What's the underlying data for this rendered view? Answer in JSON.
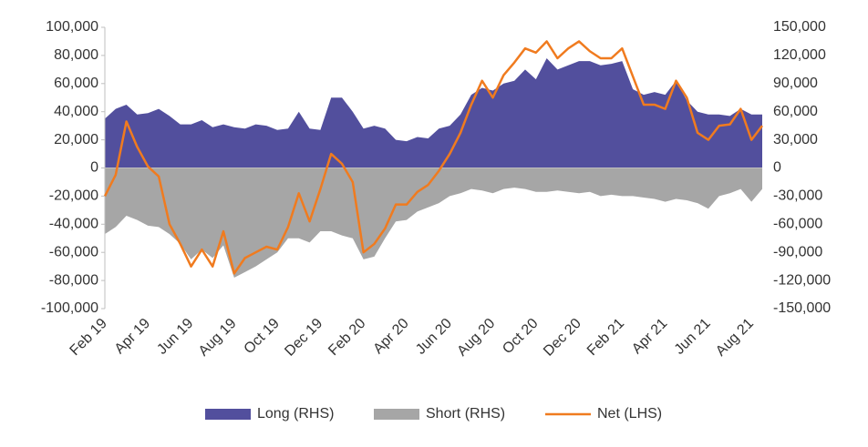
{
  "chart_data": {
    "type": "line",
    "categories": [
      "Feb 19",
      null,
      null,
      null,
      "Apr 19",
      null,
      null,
      null,
      "Jun 19",
      null,
      null,
      null,
      "Aug 19",
      null,
      null,
      null,
      "Oct 19",
      null,
      null,
      null,
      "Dec 19",
      null,
      null,
      null,
      "Feb 20",
      null,
      null,
      null,
      "Apr 20",
      null,
      null,
      null,
      "Jun 20",
      null,
      null,
      null,
      "Aug 20",
      null,
      null,
      null,
      "Oct 20",
      null,
      null,
      null,
      "Dec 20",
      null,
      null,
      null,
      "Feb 21",
      null,
      null,
      null,
      "Apr 21",
      null,
      null,
      null,
      "Jun 21",
      null,
      null,
      null,
      "Aug 21",
      null
    ],
    "series": [
      {
        "name": "Long (RHS)",
        "type": "area",
        "axis": "y2",
        "color": "#524f9d",
        "values": [
          52500,
          63000,
          67500,
          57000,
          58500,
          63000,
          55500,
          46500,
          46500,
          51000,
          43500,
          46500,
          43500,
          42000,
          46500,
          45000,
          40500,
          42000,
          60000,
          42000,
          40500,
          75000,
          75000,
          60000,
          42000,
          45000,
          42000,
          30000,
          28500,
          33000,
          31500,
          42000,
          45000,
          57000,
          78000,
          85500,
          82500,
          90000,
          93000,
          105000,
          94500,
          117000,
          105000,
          109500,
          114000,
          114000,
          109500,
          111000,
          114000,
          84000,
          78000,
          81000,
          78000,
          93000,
          72000,
          60000,
          57000,
          57000,
          55500,
          63000,
          57000,
          57000
        ]
      },
      {
        "name": "Short (RHS)",
        "type": "area",
        "axis": "y2",
        "color": "#a6a6a6",
        "values": [
          -70500,
          -63000,
          -51000,
          -55500,
          -61500,
          -63000,
          -70500,
          -81000,
          -97500,
          -87000,
          -96000,
          -82500,
          -117000,
          -111000,
          -105000,
          -97500,
          -90000,
          -75000,
          -75000,
          -79500,
          -67500,
          -67500,
          -72000,
          -75000,
          -97500,
          -94500,
          -75000,
          -57000,
          -55500,
          -46500,
          -42000,
          -37500,
          -30000,
          -27000,
          -22500,
          -24000,
          -27000,
          -22500,
          -21000,
          -22500,
          -25500,
          -25500,
          -24000,
          -25500,
          -27000,
          -25500,
          -30000,
          -28500,
          -30000,
          -30000,
          -31500,
          -33000,
          -36000,
          -33000,
          -34500,
          -37500,
          -43500,
          -30000,
          -27000,
          -22500,
          -36000,
          -22500
        ]
      },
      {
        "name": "Net (LHS)",
        "type": "line",
        "axis": "y",
        "color": "#f07b1f",
        "values": [
          -20000,
          -5000,
          33000,
          15000,
          1000,
          -6000,
          -40000,
          -54000,
          -70000,
          -58000,
          -70000,
          -45000,
          -75000,
          -64000,
          -60000,
          -56000,
          -58000,
          -42000,
          -18000,
          -38000,
          -15000,
          10000,
          3000,
          -10000,
          -60000,
          -54000,
          -43000,
          -26000,
          -26000,
          -17000,
          -12000,
          -2000,
          10000,
          25000,
          45000,
          62000,
          50000,
          66000,
          75000,
          85000,
          82000,
          90000,
          78000,
          85000,
          90000,
          83000,
          78000,
          78000,
          85000,
          65000,
          45000,
          45000,
          42000,
          62000,
          50000,
          25000,
          20000,
          30000,
          31000,
          42000,
          20000,
          30000
        ]
      }
    ],
    "ylim": [
      -100000,
      100000
    ],
    "yticks": [
      {
        "value": -100000,
        "label": "-100,000"
      },
      {
        "value": -80000,
        "label": "-80,000"
      },
      {
        "value": -60000,
        "label": "-60,000"
      },
      {
        "value": -40000,
        "label": "-40,000"
      },
      {
        "value": -20000,
        "label": "-20,000"
      },
      0,
      {
        "value": 20000,
        "label": "20,000"
      },
      {
        "value": 40000,
        "label": "40,000"
      },
      {
        "value": 60000,
        "label": "60,000"
      },
      {
        "value": 80000,
        "label": "80,000"
      },
      {
        "value": 100000,
        "label": "100,000"
      }
    ],
    "y2lim": [
      -150000,
      150000
    ],
    "y2ticks": [
      {
        "value": -150000,
        "label": "-150,000"
      },
      {
        "value": -120000,
        "label": "-120,000"
      },
      {
        "value": -90000,
        "label": "-90,000"
      },
      {
        "value": -60000,
        "label": "-60,000"
      },
      {
        "value": -30000,
        "label": "-30,000"
      },
      0,
      {
        "value": 30000,
        "label": "30,000"
      },
      {
        "value": 60000,
        "label": "60,000"
      },
      {
        "value": 90000,
        "label": "90,000"
      },
      {
        "value": 120000,
        "label": "120,000"
      },
      {
        "value": 150000,
        "label": "150,000"
      }
    ],
    "grid": false,
    "legend": "bottom"
  }
}
